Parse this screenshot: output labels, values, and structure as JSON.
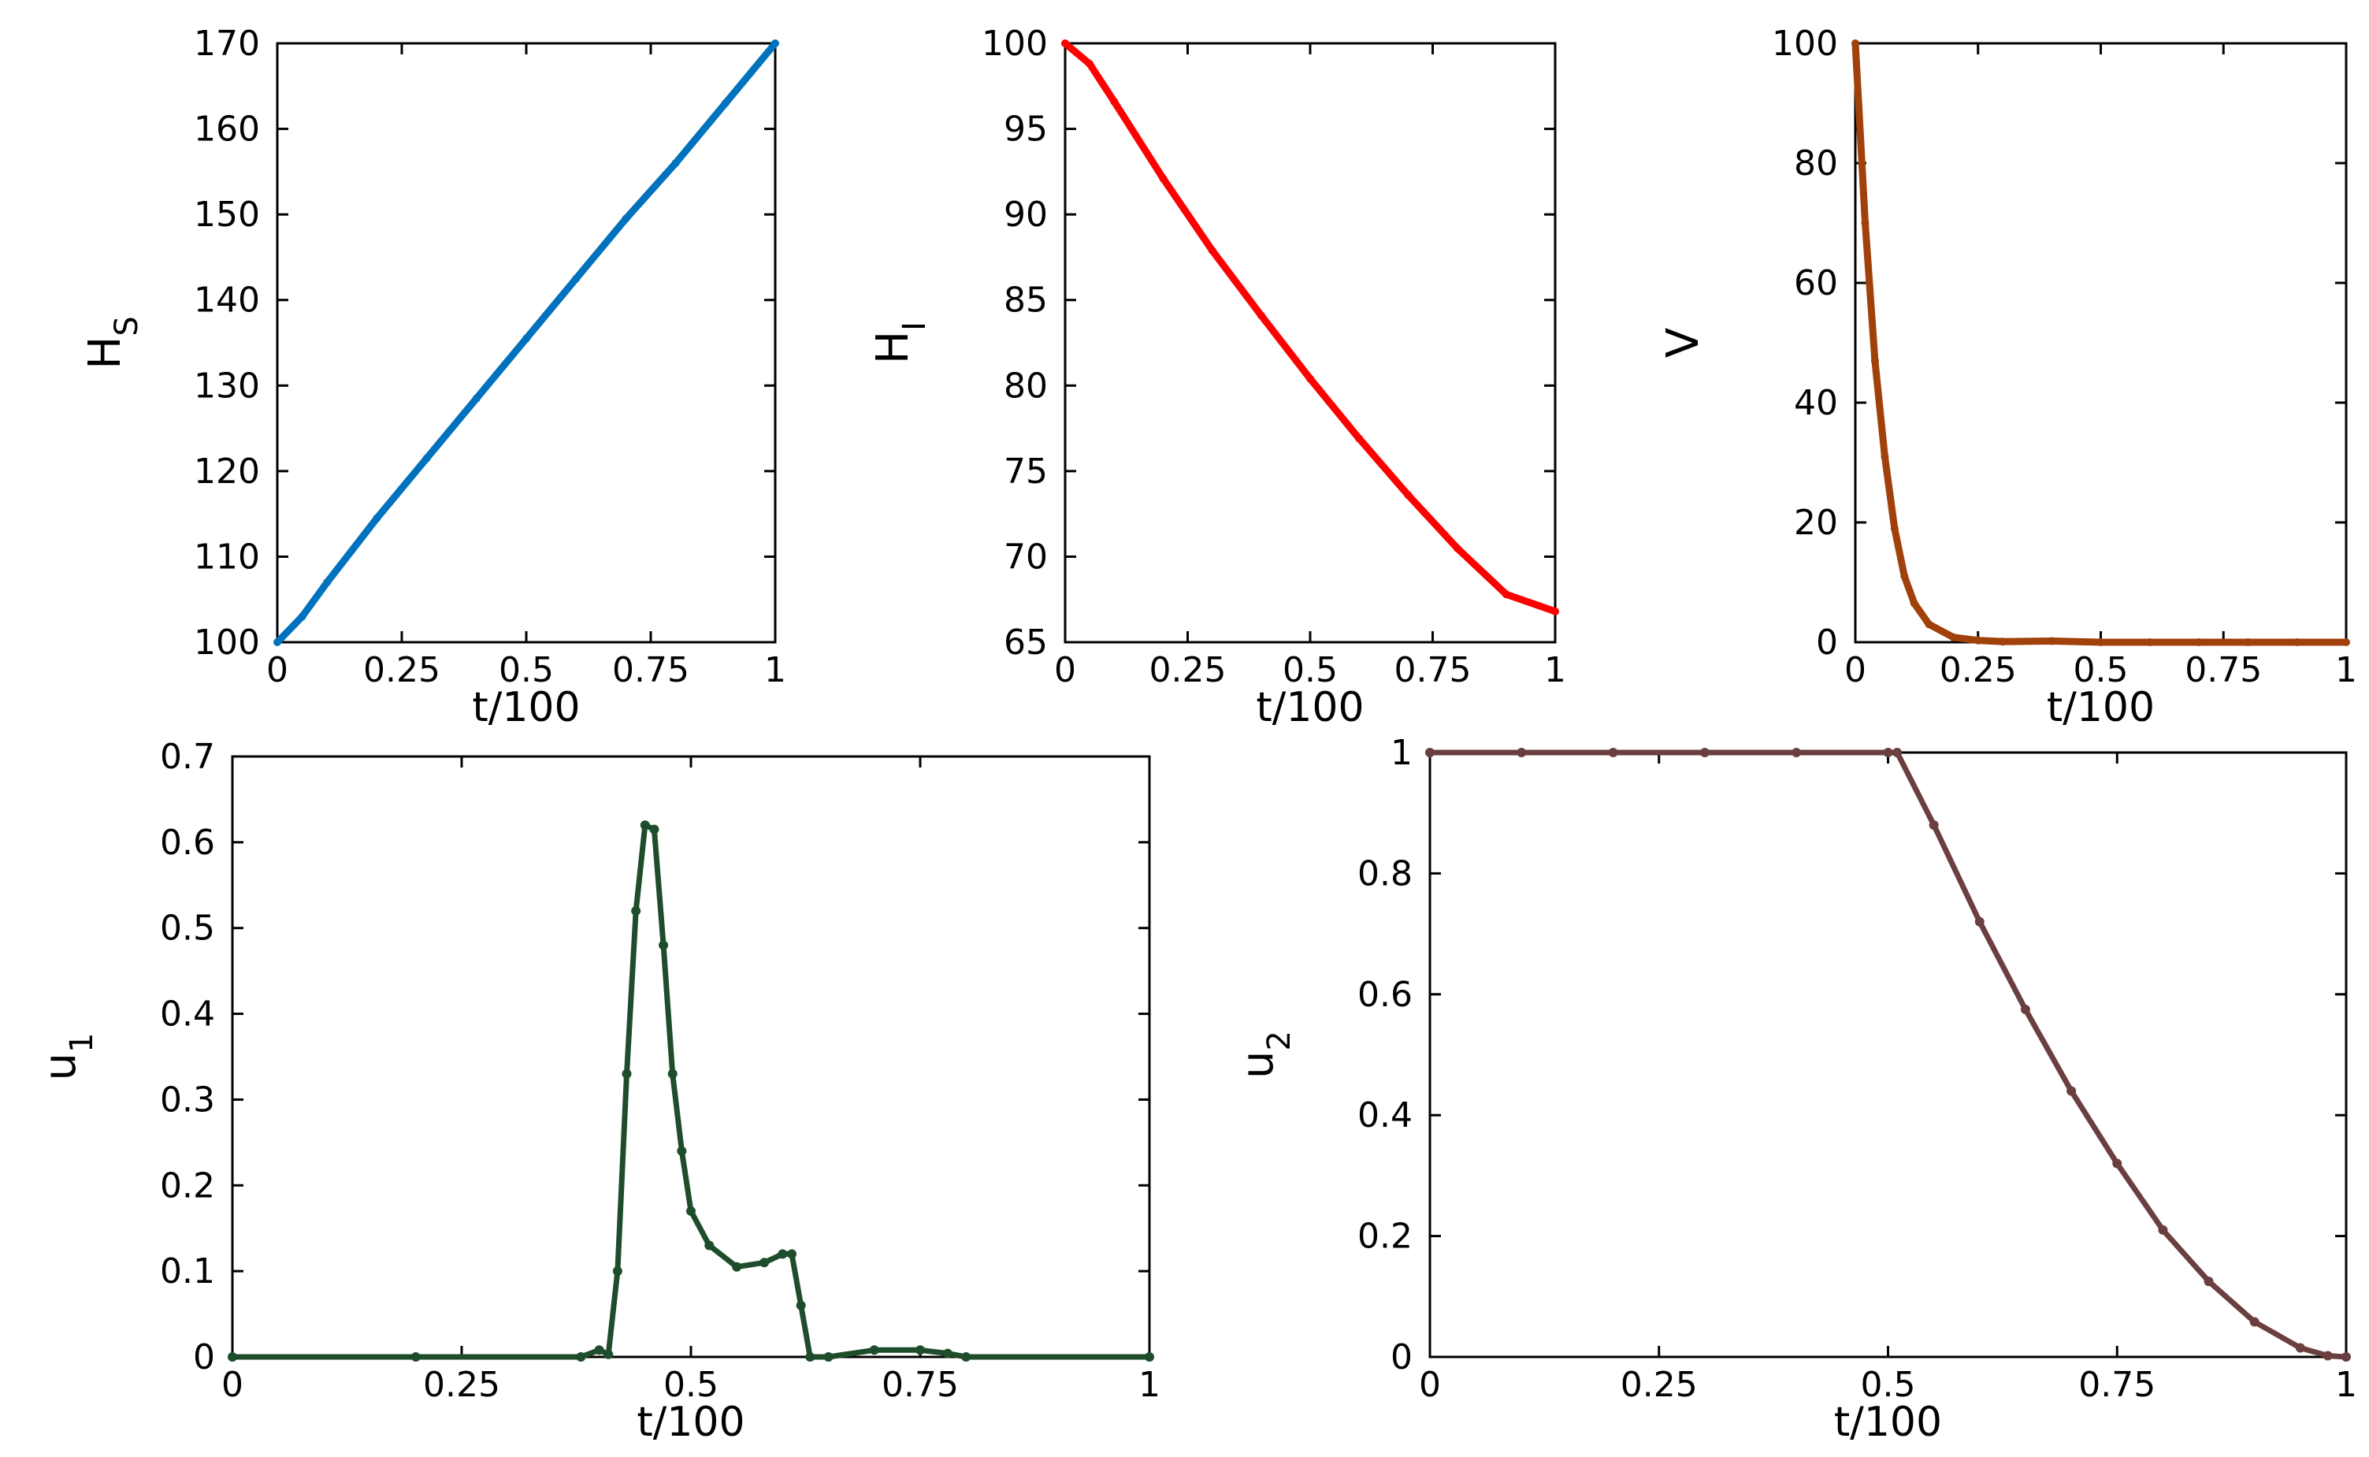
{
  "chart_data": [
    {
      "id": "hs",
      "type": "line",
      "color": "#0072BD",
      "ylabel": {
        "main": "H",
        "sub": "S"
      },
      "xlabel": "t/100",
      "xlim": [
        0,
        1
      ],
      "ylim": [
        100,
        170
      ],
      "xticks": [
        0,
        0.25,
        0.5,
        0.75,
        1
      ],
      "xtick_labels": [
        "0",
        "0.25",
        "0.5",
        "0.75",
        "1"
      ],
      "yticks": [
        100,
        110,
        120,
        130,
        140,
        150,
        160,
        170
      ],
      "ytick_labels": [
        "100",
        "110",
        "120",
        "130",
        "140",
        "150",
        "160",
        "170"
      ],
      "series": [
        {
          "name": "H_S",
          "x": [
            0,
            0.05,
            0.1,
            0.2,
            0.3,
            0.4,
            0.5,
            0.6,
            0.7,
            0.8,
            0.9,
            1.0
          ],
          "y": [
            100,
            103,
            107,
            114.5,
            121.5,
            128.5,
            135.5,
            142.5,
            149.5,
            156,
            163,
            170
          ]
        }
      ]
    },
    {
      "id": "hi",
      "type": "line",
      "color": "#FF0000",
      "ylabel": {
        "main": "H",
        "sub": "I"
      },
      "xlabel": "t/100",
      "xlim": [
        0,
        1
      ],
      "ylim": [
        65,
        100
      ],
      "xticks": [
        0,
        0.25,
        0.5,
        0.75,
        1
      ],
      "xtick_labels": [
        "0",
        "0.25",
        "0.5",
        "0.75",
        "1"
      ],
      "yticks": [
        65,
        70,
        75,
        80,
        85,
        90,
        95,
        100
      ],
      "ytick_labels": [
        "65",
        "70",
        "75",
        "80",
        "85",
        "90",
        "95",
        "100"
      ],
      "series": [
        {
          "name": "H_I",
          "x": [
            0,
            0.05,
            0.1,
            0.2,
            0.3,
            0.4,
            0.5,
            0.6,
            0.7,
            0.8,
            0.9,
            1.0
          ],
          "y": [
            100,
            98.8,
            96.6,
            92.1,
            87.9,
            84.1,
            80.4,
            76.9,
            73.6,
            70.5,
            67.8,
            66.8
          ]
        }
      ]
    },
    {
      "id": "v",
      "type": "line",
      "color": "#A0400A",
      "ylabel": {
        "main": "V",
        "sub": ""
      },
      "xlabel": "t/100",
      "xlim": [
        0,
        1
      ],
      "ylim": [
        0,
        100
      ],
      "xticks": [
        0,
        0.25,
        0.5,
        0.75,
        1
      ],
      "xtick_labels": [
        "0",
        "0.25",
        "0.5",
        "0.75",
        "1"
      ],
      "yticks": [
        0,
        20,
        40,
        60,
        80,
        100
      ],
      "ytick_labels": [
        "0",
        "20",
        "40",
        "60",
        "80",
        "100"
      ],
      "series": [
        {
          "name": "V",
          "x": [
            0,
            0.02,
            0.04,
            0.06,
            0.08,
            0.1,
            0.12,
            0.15,
            0.2,
            0.25,
            0.3,
            0.4,
            0.5,
            0.6,
            0.7,
            0.8,
            0.9,
            1.0
          ],
          "y": [
            100,
            70,
            47,
            31,
            19,
            11,
            6.5,
            3,
            0.8,
            0.3,
            0.1,
            0.2,
            0,
            0,
            0,
            0,
            0,
            0
          ]
        }
      ]
    },
    {
      "id": "u1",
      "type": "line",
      "color": "#1E4D2B",
      "ylabel": {
        "main": "u",
        "sub": "1"
      },
      "xlabel": "t/100",
      "xlim": [
        0,
        1
      ],
      "ylim": [
        0,
        0.7
      ],
      "xticks": [
        0,
        0.25,
        0.5,
        0.75,
        1
      ],
      "xtick_labels": [
        "0",
        "0.25",
        "0.5",
        "0.75",
        "1"
      ],
      "yticks": [
        0,
        0.1,
        0.2,
        0.3,
        0.4,
        0.5,
        0.6,
        0.7
      ],
      "ytick_labels": [
        "0",
        "0.1",
        "0.2",
        "0.3",
        "0.4",
        "0.5",
        "0.6",
        "0.7"
      ],
      "series": [
        {
          "name": "u_1",
          "x": [
            0,
            0.2,
            0.38,
            0.4,
            0.41,
            0.42,
            0.43,
            0.44,
            0.45,
            0.46,
            0.47,
            0.48,
            0.49,
            0.5,
            0.52,
            0.55,
            0.58,
            0.6,
            0.61,
            0.62,
            0.63,
            0.65,
            0.7,
            0.75,
            0.78,
            0.8,
            1.0
          ],
          "y": [
            0,
            0,
            0,
            0.008,
            0.003,
            0.1,
            0.33,
            0.52,
            0.62,
            0.615,
            0.48,
            0.33,
            0.24,
            0.17,
            0.13,
            0.105,
            0.11,
            0.12,
            0.12,
            0.06,
            0,
            0,
            0.008,
            0.008,
            0.004,
            0,
            0
          ]
        }
      ]
    },
    {
      "id": "u2",
      "type": "line",
      "color": "#6B3F3F",
      "ylabel": {
        "main": "u",
        "sub": "2"
      },
      "xlabel": "t/100",
      "xlim": [
        0,
        1
      ],
      "ylim": [
        0,
        1
      ],
      "xticks": [
        0,
        0.25,
        0.5,
        0.75,
        1
      ],
      "xtick_labels": [
        "0",
        "0.25",
        "0.5",
        "0.75",
        "1"
      ],
      "yticks": [
        0,
        0.2,
        0.4,
        0.6,
        0.8,
        1
      ],
      "ytick_labels": [
        "0",
        "0.2",
        "0.4",
        "0.6",
        "0.8",
        "1"
      ],
      "series": [
        {
          "name": "u_2",
          "x": [
            0,
            0.1,
            0.2,
            0.3,
            0.4,
            0.5,
            0.51,
            0.55,
            0.6,
            0.65,
            0.7,
            0.75,
            0.8,
            0.85,
            0.9,
            0.95,
            0.98,
            1.0
          ],
          "y": [
            1,
            1,
            1,
            1,
            1,
            1,
            1,
            0.88,
            0.72,
            0.575,
            0.44,
            0.32,
            0.21,
            0.125,
            0.058,
            0.015,
            0.002,
            0
          ]
        }
      ]
    }
  ]
}
